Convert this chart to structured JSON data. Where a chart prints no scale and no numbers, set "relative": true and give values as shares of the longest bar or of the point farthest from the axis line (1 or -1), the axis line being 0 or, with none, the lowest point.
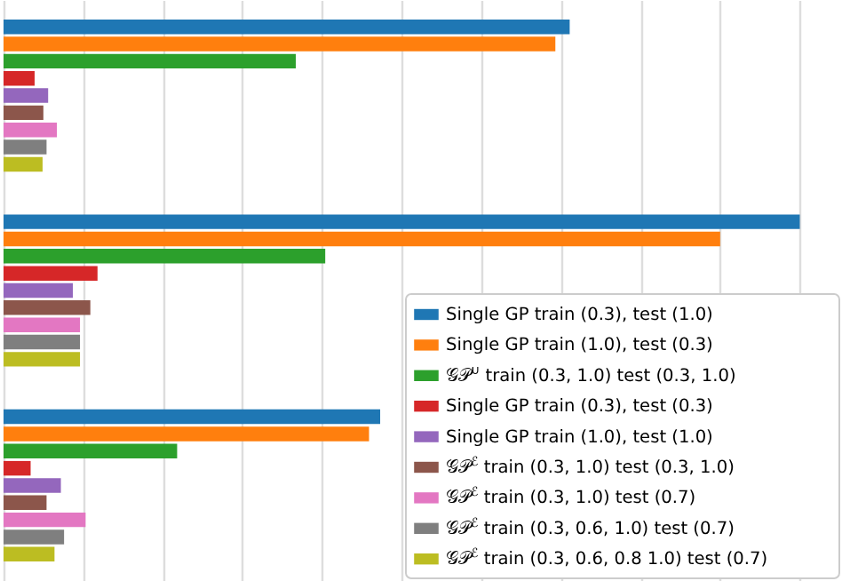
{
  "chart_data": {
    "type": "bar",
    "orientation": "horizontal",
    "relative": true,
    "categories": [
      null,
      null,
      null
    ],
    "grid": "x",
    "legend": "bottom right",
    "series": [
      {
        "name": "Single GP train (0.3), test (1.0)",
        "color": "#1f77b4",
        "values": [
          0.711,
          1,
          0.473
        ]
      },
      {
        "name": "Single GP train (1.0), test (0.3)",
        "color": "#ff7f0e",
        "values": [
          0.693,
          0.9,
          0.459
        ]
      },
      {
        "name": "𝒢𝒫$^{∪}$ train (0.3, 1.0) test (0.3, 1.0)",
        "color": "#2ca02c",
        "values": [
          0.367,
          0.404,
          0.218
        ]
      },
      {
        "name": "Single GP train (0.3), test (0.3)",
        "color": "#d62728",
        "values": [
          0.039,
          0.118,
          0.034
        ]
      },
      {
        "name": "Single GP train (1.0), test (1.0)",
        "color": "#9467bd",
        "values": [
          0.056,
          0.087,
          0.072
        ]
      },
      {
        "name": "𝒢𝒫$^{ℰ}$ train (0.3, 1.0) test (0.3, 1.0)",
        "color": "#8c564b",
        "values": [
          0.05,
          0.109,
          0.054
        ]
      },
      {
        "name": "𝒢𝒫$^{ℰ}$ train (0.3, 1.0) test (0.7)",
        "color": "#e377c2",
        "values": [
          0.067,
          0.096,
          0.103
        ]
      },
      {
        "name": "𝒢𝒫$^{ℰ}$ train (0.3, 0.6, 1.0) test (0.7)",
        "color": "#7f7f7f",
        "values": [
          0.054,
          0.096,
          0.076
        ]
      },
      {
        "name": "𝒢𝒫$^{ℰ}$ train (0.3, 0.6, 0.8 1.0) test (0.7)",
        "color": "#bcbd22",
        "values": [
          0.049,
          0.096,
          0.064
        ]
      }
    ]
  }
}
